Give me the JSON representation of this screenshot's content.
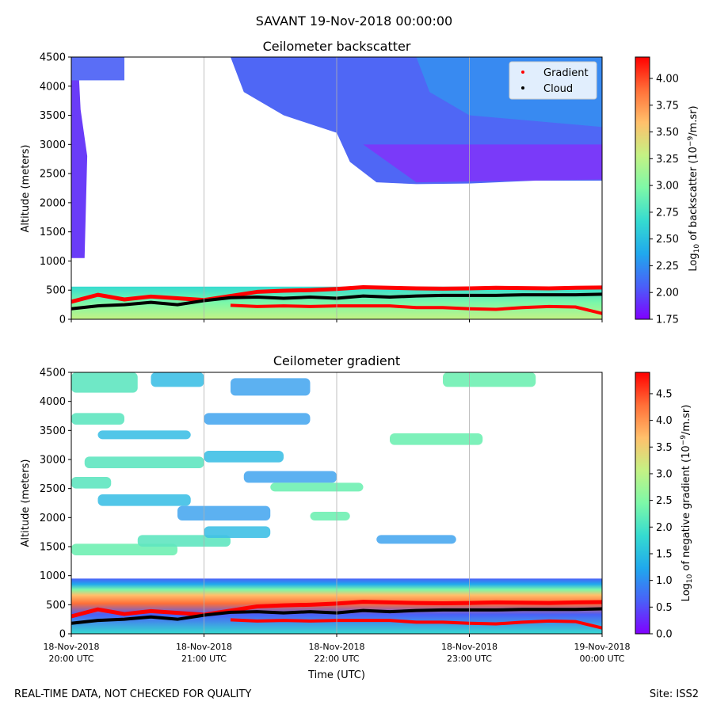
{
  "figure_title": "SAVANT 19-Nov-2018 00:00:00",
  "footer_left": "REAL-TIME DATA, NOT CHECKED FOR QUALITY",
  "footer_right": "Site: ISS2",
  "chart_data": [
    {
      "type": "heatmap",
      "title": "Ceilometer backscatter",
      "ylabel": "Altitude (meters)",
      "ylim": [
        0,
        4500
      ],
      "yticks": [
        0,
        500,
        1000,
        1500,
        2000,
        2500,
        3000,
        3500,
        4000,
        4500
      ],
      "xlim_hours_utc": [
        20,
        24
      ],
      "colorbar": {
        "label": "Log10 of backscatter (10^-9/m.sr)",
        "range": [
          1.75,
          4.2
        ],
        "ticks": [
          "4.00",
          "3.75",
          "3.50",
          "3.25",
          "3.00",
          "2.75",
          "2.50",
          "2.25",
          "2.00",
          "1.75"
        ],
        "tick_values": [
          4.0,
          3.75,
          3.5,
          3.25,
          3.0,
          2.75,
          2.5,
          2.25,
          2.0,
          1.75
        ],
        "colors": [
          "#8000ff",
          "#4a5ff8",
          "#20a8ed",
          "#35dbd0",
          "#7df8a8",
          "#c4f284",
          "#ffc06b",
          "#ff6f38",
          "#ff0000"
        ]
      },
      "legend": {
        "placement": "top-right",
        "entries": [
          {
            "label": "Gradient",
            "color": "#ff0000"
          },
          {
            "label": "Cloud",
            "color": "#000000"
          }
        ]
      },
      "gradient_series": {
        "x_hours": [
          20.0,
          20.2,
          20.4,
          20.6,
          20.8,
          21.0,
          21.2,
          21.4,
          21.6,
          21.8,
          22.0,
          22.2,
          22.4,
          22.6,
          22.8,
          23.0,
          23.2,
          23.4,
          23.6,
          23.8,
          24.0
        ],
        "upper_m": [
          300,
          420,
          340,
          390,
          360,
          330,
          400,
          470,
          490,
          500,
          520,
          550,
          540,
          530,
          525,
          530,
          540,
          535,
          530,
          540,
          545
        ],
        "lower_m": [
          null,
          null,
          null,
          null,
          null,
          null,
          240,
          220,
          230,
          220,
          230,
          230,
          230,
          200,
          200,
          180,
          170,
          200,
          220,
          210,
          100
        ]
      },
      "cloud_series": {
        "x_hours": [
          20.0,
          20.2,
          20.4,
          20.6,
          20.8,
          21.0,
          21.2,
          21.4,
          21.6,
          21.8,
          22.0,
          22.2,
          22.4,
          22.6,
          22.8,
          23.0,
          23.2,
          23.4,
          23.6,
          23.8,
          24.0
        ],
        "altitude_m": [
          180,
          230,
          250,
          290,
          250,
          320,
          370,
          380,
          360,
          380,
          360,
          400,
          380,
          400,
          410,
          410,
          410,
          420,
          420,
          420,
          430
        ]
      },
      "cloud_layer_top_m": [
        [
          20.0,
          4500,
          1050
        ],
        [
          22.1,
          4500,
          2400
        ],
        [
          22.5,
          4500,
          2300
        ],
        [
          23.0,
          4500,
          2350
        ],
        [
          24.0,
          4500,
          2400
        ]
      ]
    },
    {
      "type": "heatmap",
      "title": "Ceilometer gradient",
      "ylabel": "Altitude (meters)",
      "xlabel": "Time (UTC)",
      "ylim": [
        0,
        4500
      ],
      "yticks": [
        0,
        500,
        1000,
        1500,
        2000,
        2500,
        3000,
        3500,
        4000,
        4500
      ],
      "xticks": [
        {
          "hour": 20,
          "date": "18-Nov-2018",
          "time": "20:00 UTC"
        },
        {
          "hour": 21,
          "date": "18-Nov-2018",
          "time": "21:00 UTC"
        },
        {
          "hour": 22,
          "date": "18-Nov-2018",
          "time": "22:00 UTC"
        },
        {
          "hour": 23,
          "date": "18-Nov-2018",
          "time": "23:00 UTC"
        },
        {
          "hour": 24,
          "date": "19-Nov-2018",
          "time": "00:00 UTC"
        }
      ],
      "colorbar": {
        "label": "Log10 of negative gradient (10^-9/m.sr)",
        "range": [
          0.0,
          4.9
        ],
        "ticks": [
          "4.5",
          "4.0",
          "3.5",
          "3.0",
          "2.5",
          "2.0",
          "1.5",
          "1.0",
          "0.5",
          "0.0"
        ],
        "tick_values": [
          4.5,
          4.0,
          3.5,
          3.0,
          2.5,
          2.0,
          1.5,
          1.0,
          0.5,
          0.0
        ],
        "colors": [
          "#8000ff",
          "#4a5ff8",
          "#20a8ed",
          "#35dbd0",
          "#7df8a8",
          "#c4f284",
          "#ffc06b",
          "#ff6f38",
          "#ff0000"
        ]
      },
      "gradient_series": {
        "x_hours": [
          20.0,
          20.2,
          20.4,
          20.6,
          20.8,
          21.0,
          21.2,
          21.4,
          21.6,
          21.8,
          22.0,
          22.2,
          22.4,
          22.6,
          22.8,
          23.0,
          23.2,
          23.4,
          23.6,
          23.8,
          24.0
        ],
        "upper_m": [
          300,
          420,
          340,
          390,
          360,
          330,
          400,
          470,
          490,
          500,
          520,
          550,
          540,
          530,
          525,
          530,
          540,
          535,
          530,
          540,
          545
        ],
        "lower_m": [
          null,
          null,
          null,
          null,
          null,
          null,
          240,
          220,
          230,
          220,
          230,
          230,
          230,
          200,
          200,
          180,
          170,
          200,
          220,
          210,
          100
        ]
      },
      "cloud_series": {
        "x_hours": [
          20.0,
          20.2,
          20.4,
          20.6,
          20.8,
          21.0,
          21.2,
          21.4,
          21.6,
          21.8,
          22.0,
          22.2,
          22.4,
          22.6,
          22.8,
          23.0,
          23.2,
          23.4,
          23.6,
          23.8,
          24.0
        ],
        "altitude_m": [
          180,
          230,
          250,
          290,
          250,
          320,
          370,
          380,
          360,
          380,
          360,
          400,
          380,
          400,
          410,
          410,
          410,
          420,
          420,
          420,
          430
        ]
      },
      "boundary_layer_top_m": 950,
      "patches_hours_m": [
        [
          20.0,
          20.5,
          4150,
          4500
        ],
        [
          20.6,
          21.0,
          4250,
          4500
        ],
        [
          21.2,
          21.8,
          4100,
          4400
        ],
        [
          22.8,
          23.5,
          4250,
          4500
        ],
        [
          20.0,
          20.4,
          3600,
          3800
        ],
        [
          20.2,
          20.9,
          3350,
          3500
        ],
        [
          21.0,
          21.8,
          3600,
          3800
        ],
        [
          22.4,
          23.1,
          3250,
          3450
        ],
        [
          20.1,
          21.0,
          2850,
          3050
        ],
        [
          21.0,
          21.6,
          2950,
          3150
        ],
        [
          21.3,
          22.0,
          2600,
          2800
        ],
        [
          21.5,
          22.2,
          2450,
          2600
        ],
        [
          20.0,
          20.3,
          2500,
          2700
        ],
        [
          20.2,
          20.9,
          2200,
          2400
        ],
        [
          20.8,
          21.5,
          1950,
          2200
        ],
        [
          20.0,
          20.8,
          1350,
          1550
        ],
        [
          20.5,
          21.2,
          1500,
          1700
        ],
        [
          21.0,
          21.5,
          1650,
          1850
        ],
        [
          22.3,
          22.9,
          1550,
          1700
        ],
        [
          21.8,
          22.1,
          1950,
          2100
        ]
      ]
    }
  ]
}
